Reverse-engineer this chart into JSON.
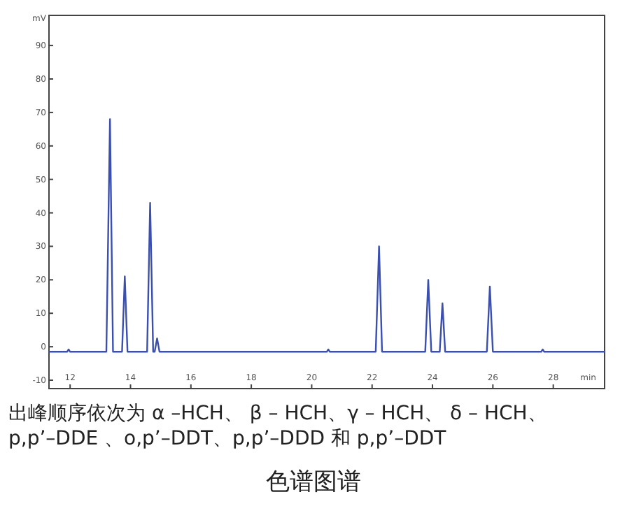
{
  "chart_data": {
    "type": "line",
    "title": "色谱图谱",
    "xlabel": "min",
    "ylabel": "mV",
    "annotations": [
      "出峰顺序依次为 α –HCH、 β – HCH、γ – HCH、 δ – HCH、",
      "p,p’–DDE 、o,p’–DDT、p,p’–DDD 和 p,p’–DDT"
    ],
    "xlim": [
      11.3,
      29.7
    ],
    "ylim": [
      -12.5,
      99
    ],
    "xticks": [
      12,
      14,
      16,
      18,
      20,
      22,
      24,
      26,
      28
    ],
    "yticks": [
      -10,
      0,
      10,
      20,
      30,
      40,
      50,
      60,
      70,
      80,
      90
    ],
    "grid": false,
    "marker": "none",
    "line_style": "solid",
    "series": [
      {
        "color": "#3a4fb0",
        "x": [
          11.3,
          11.9,
          11.95,
          12.0,
          13.2,
          13.32,
          13.42,
          13.72,
          13.81,
          13.9,
          14.55,
          14.65,
          14.75,
          14.8,
          14.88,
          14.96,
          16.0,
          20.5,
          20.55,
          20.6,
          22.12,
          22.23,
          22.33,
          23.4,
          23.45,
          23.5,
          23.76,
          23.86,
          23.96,
          24.24,
          24.33,
          24.42,
          25.8,
          25.9,
          26.0,
          27.6,
          27.65,
          27.7,
          29.7
        ],
        "values": [
          -1.5,
          -1.5,
          -0.8,
          -1.5,
          -1.5,
          68,
          -1.5,
          -1.5,
          21,
          -1.5,
          -1.5,
          43,
          -1.5,
          -1.5,
          2.5,
          -1.5,
          -1.5,
          -1.5,
          -0.8,
          -1.5,
          -1.5,
          30,
          -1.5,
          -1.5,
          -1.5,
          -1.5,
          -1.5,
          20,
          -1.5,
          -1.5,
          13,
          -1.5,
          -1.5,
          18,
          -1.5,
          -1.5,
          -0.8,
          -1.5,
          -1.5
        ]
      }
    ]
  }
}
